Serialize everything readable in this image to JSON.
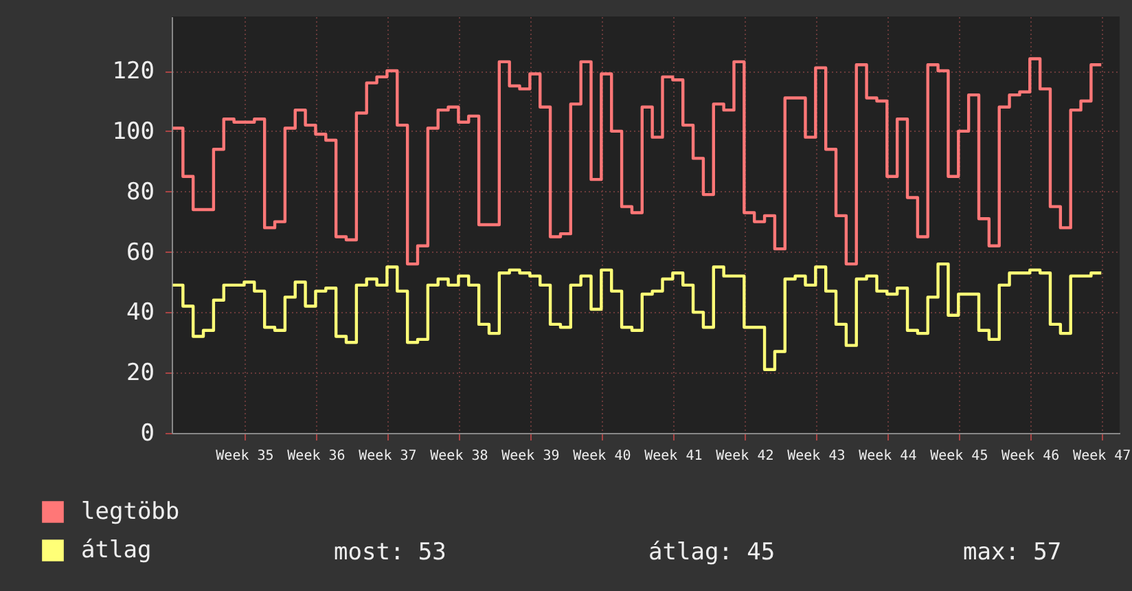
{
  "chart_data": {
    "type": "step",
    "ylim": [
      0,
      138
    ],
    "yticks": [
      0,
      20,
      40,
      60,
      80,
      100,
      120
    ],
    "categories": [
      null,
      null,
      null,
      null,
      null,
      null,
      null,
      "Week 35",
      null,
      null,
      null,
      null,
      null,
      null,
      "Week 36",
      null,
      null,
      null,
      null,
      null,
      null,
      "Week 37",
      null,
      null,
      null,
      null,
      null,
      null,
      "Week 38",
      null,
      null,
      null,
      null,
      null,
      null,
      "Week 39",
      null,
      null,
      null,
      null,
      null,
      null,
      "Week 40",
      null,
      null,
      null,
      null,
      null,
      null,
      "Week 41",
      null,
      null,
      null,
      null,
      null,
      null,
      "Week 42",
      null,
      null,
      null,
      null,
      null,
      null,
      "Week 43",
      null,
      null,
      null,
      null,
      null,
      null,
      "Week 44",
      null,
      null,
      null,
      null,
      null,
      null,
      "Week 45",
      null,
      null,
      null,
      null,
      null,
      null,
      "Week 46",
      null,
      null,
      null,
      null,
      null,
      null,
      "Week 47"
    ],
    "series": [
      {
        "name": "legtöbb",
        "color": "#ff7777",
        "values": [
          101,
          85,
          74,
          74,
          94,
          104,
          103,
          103,
          104,
          68,
          70,
          101,
          107,
          102,
          99,
          97,
          65,
          64,
          106,
          116,
          118,
          120,
          102,
          56,
          62,
          101,
          107,
          108,
          103,
          105,
          69,
          69,
          123,
          115,
          114,
          119,
          108,
          65,
          66,
          109,
          123,
          84,
          119,
          100,
          75,
          73,
          108,
          98,
          118,
          117,
          102,
          91,
          79,
          109,
          107,
          123,
          73,
          70,
          72,
          61,
          111,
          111,
          98,
          121,
          94,
          72,
          56,
          122,
          111,
          110,
          85,
          104,
          78,
          65,
          122,
          120,
          85,
          100,
          112,
          71,
          62,
          108,
          112,
          113,
          124,
          114,
          75,
          68,
          107,
          110,
          122,
          122
        ]
      },
      {
        "name": "átlag",
        "color": "#ffff77",
        "values": [
          49,
          42,
          32,
          34,
          44,
          49,
          49,
          50,
          47,
          35,
          34,
          45,
          50,
          42,
          47,
          48,
          32,
          30,
          49,
          51,
          49,
          55,
          47,
          30,
          31,
          49,
          51,
          49,
          52,
          49,
          36,
          33,
          53,
          54,
          53,
          52,
          49,
          36,
          35,
          49,
          52,
          41,
          54,
          47,
          35,
          34,
          46,
          47,
          51,
          53,
          49,
          40,
          35,
          55,
          52,
          52,
          35,
          35,
          21,
          27,
          51,
          52,
          49,
          55,
          47,
          36,
          29,
          51,
          52,
          47,
          46,
          48,
          34,
          33,
          45,
          56,
          39,
          46,
          46,
          34,
          31,
          49,
          53,
          53,
          54,
          53,
          36,
          33,
          52,
          52,
          53,
          53
        ]
      }
    ],
    "annotations": [
      "most: 53",
      "átlag: 45",
      "max: 57"
    ],
    "grid": true,
    "legend": "bottom left"
  }
}
